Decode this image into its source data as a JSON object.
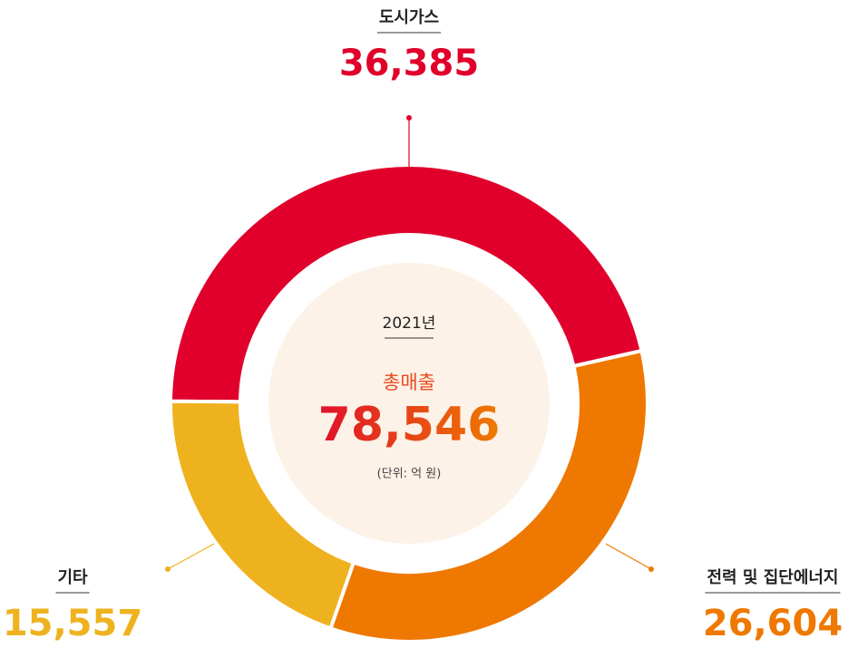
{
  "chart_data": {
    "type": "pie",
    "donut": true,
    "categories": [
      "도시가스",
      "전력 및 집단에너지",
      "기타"
    ],
    "values": [
      36385,
      26604,
      15557
    ],
    "value_labels": [
      "36,385",
      "26,604",
      "15,557"
    ],
    "colors": [
      "#e0002b",
      "#ef7800",
      "#efb21f"
    ],
    "center": {
      "year": "2021년",
      "label": "총매출",
      "total": "78,546",
      "unit": "(단위: 억 원)"
    }
  }
}
